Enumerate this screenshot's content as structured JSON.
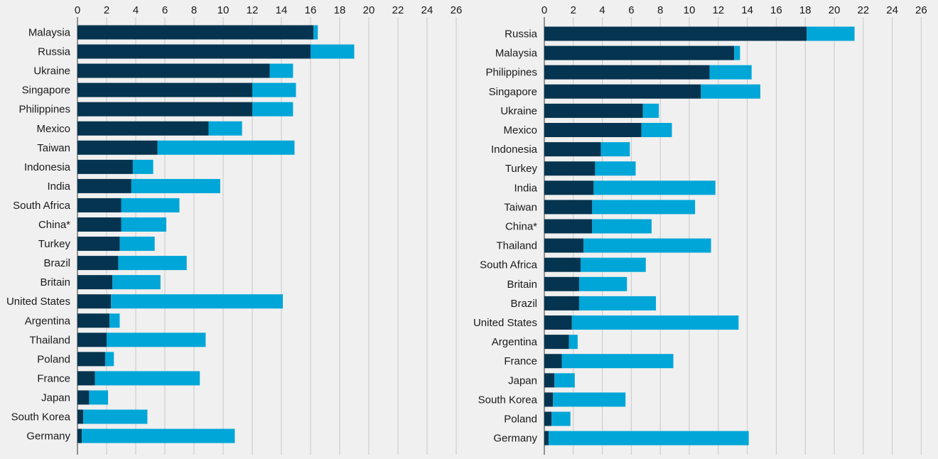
{
  "colors": {
    "dark": "#04344f",
    "light": "#00a6d8",
    "grid": "#c9c9c9",
    "axis": "#555555",
    "background": "#f0f0f0"
  },
  "chart_data": [
    {
      "type": "bar",
      "orientation": "horizontal",
      "stacked": true,
      "xlim": [
        0,
        26
      ],
      "xticks": [
        0,
        2,
        4,
        6,
        8,
        10,
        12,
        14,
        16,
        18,
        20,
        22,
        24,
        26
      ],
      "tick_labels": [
        "0",
        "2",
        "4",
        "6",
        "8",
        "10",
        "12",
        "14",
        "16",
        "18",
        "20",
        "22",
        "24",
        "26"
      ],
      "categories": [
        "Malaysia",
        "Russia",
        "Ukraine",
        "Singapore",
        "Philippines",
        "Mexico",
        "Taiwan",
        "Indonesia",
        "India",
        "South Africa",
        "China*",
        "Turkey",
        "Brazil",
        "Britain",
        "United States",
        "Argentina",
        "Thailand",
        "Poland",
        "France",
        "Japan",
        "South Korea",
        "Germany"
      ],
      "series": [
        {
          "name": "dark",
          "values": [
            16.2,
            16.0,
            13.2,
            12.0,
            12.0,
            9.0,
            5.5,
            3.8,
            3.7,
            3.0,
            3.0,
            2.9,
            2.8,
            2.4,
            2.3,
            2.2,
            2.0,
            1.9,
            1.2,
            0.8,
            0.4,
            0.3
          ]
        },
        {
          "name": "light",
          "values": [
            0.3,
            3.0,
            1.6,
            3.0,
            2.8,
            2.3,
            9.4,
            1.4,
            6.1,
            4.0,
            3.1,
            2.4,
            4.7,
            3.3,
            11.8,
            0.7,
            6.8,
            0.6,
            7.2,
            1.3,
            4.4,
            10.5
          ]
        }
      ]
    },
    {
      "type": "bar",
      "orientation": "horizontal",
      "stacked": true,
      "xlim": [
        0,
        26
      ],
      "xticks": [
        0,
        2,
        4,
        6,
        8,
        10,
        12,
        14,
        16,
        18,
        20,
        22,
        24,
        26
      ],
      "tick_labels": [
        "0",
        "2",
        "4",
        "6",
        "8",
        "10",
        "12",
        "14",
        "16",
        "18",
        "20",
        "22",
        "24",
        "26"
      ],
      "categories": [
        "Russia",
        "Malaysia",
        "Philippines",
        "Singapore",
        "Ukraine",
        "Mexico",
        "Indonesia",
        "Turkey",
        "India",
        "Taiwan",
        "China*",
        "Thailand",
        "South Africa",
        "Britain",
        "Brazil",
        "United States",
        "Argentina",
        "France",
        "Japan",
        "South Korea",
        "Poland",
        "Germany"
      ],
      "series": [
        {
          "name": "dark",
          "values": [
            18.1,
            13.1,
            11.4,
            10.8,
            6.8,
            6.7,
            3.9,
            3.5,
            3.4,
            3.3,
            3.3,
            2.7,
            2.5,
            2.4,
            2.4,
            1.9,
            1.7,
            1.2,
            0.7,
            0.6,
            0.5,
            0.3
          ]
        },
        {
          "name": "light",
          "values": [
            3.3,
            0.4,
            2.9,
            4.1,
            1.1,
            2.1,
            2.0,
            2.8,
            8.4,
            7.1,
            4.1,
            8.8,
            4.5,
            3.3,
            5.3,
            11.5,
            0.6,
            7.7,
            1.4,
            5.0,
            1.3,
            13.8
          ]
        }
      ]
    }
  ]
}
